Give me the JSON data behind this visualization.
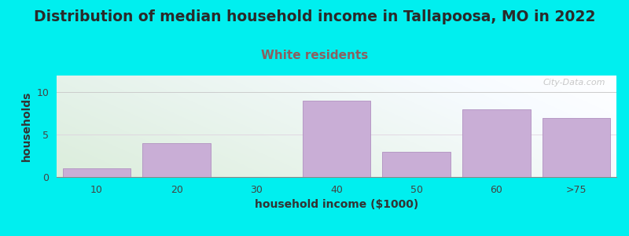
{
  "title": "Distribution of median household income in Tallapoosa, MO in 2022",
  "subtitle": "White residents",
  "xlabel": "household income ($1000)",
  "ylabel": "households",
  "categories": [
    "10",
    "20",
    "30",
    "40",
    "50",
    "60",
    ">75"
  ],
  "values": [
    1,
    4,
    0,
    9,
    3,
    8,
    7
  ],
  "bar_color": "#c9aed6",
  "bar_edge_color": "#b090c0",
  "background_outer": "#00efef",
  "ylim": [
    0,
    12
  ],
  "yticks": [
    0,
    5,
    10
  ],
  "title_fontsize": 13.5,
  "subtitle_fontsize": 11,
  "subtitle_color": "#8b6060",
  "axis_label_fontsize": 10,
  "tick_fontsize": 9,
  "watermark_text": "City-Data.com"
}
